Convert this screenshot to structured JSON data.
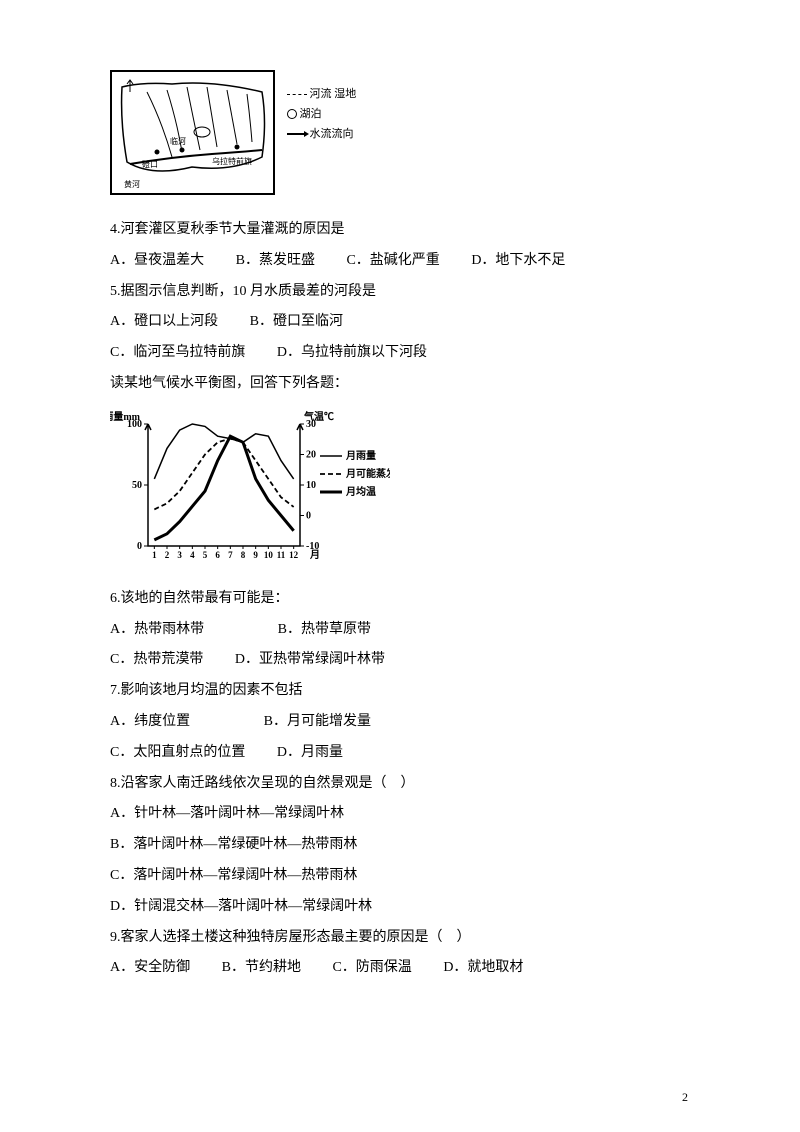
{
  "map": {
    "legend": {
      "riverJiZhi": "河流 湿地",
      "hupo": "湖泊",
      "liuxiang": "水流流向"
    },
    "labels": {
      "cizhi": "磴口",
      "linhe": "临河",
      "wulate": "乌拉特前旗"
    }
  },
  "q4": {
    "text": "4.河套灌区夏秋季节大量灌溉的原因是",
    "A": "A．昼夜温差大",
    "B": "B．蒸发旺盛",
    "C": "C．盐碱化严重",
    "D": "D．地下水不足"
  },
  "q5": {
    "text": "5.据图示信息判断，10 月水质最差的河段是",
    "A": "A．磴口以上河段",
    "B": "B．磴口至临河",
    "C": "C．临河至乌拉特前旗",
    "D": "D．乌拉特前旗以下河段"
  },
  "intro6": "读某地气候水平衡图，回答下列各题：",
  "chart": {
    "yLeftLabel": "降雨量mm",
    "yRightLabel": "气温℃",
    "yLeftTicks": [
      0,
      50,
      100
    ],
    "yRightTicks": [
      -10,
      0,
      10,
      20,
      30
    ],
    "months": [
      "1",
      "2",
      "3",
      "4",
      "5",
      "6",
      "7",
      "8",
      "9",
      "10",
      "11",
      "12"
    ],
    "xLabel": "月",
    "legend": {
      "rain": "月雨量",
      "evap": "月可能蒸发量",
      "temp": "月均温"
    },
    "rainValues": [
      55,
      80,
      95,
      100,
      98,
      90,
      88,
      85,
      92,
      90,
      70,
      55
    ],
    "evapValues": [
      30,
      35,
      45,
      60,
      75,
      85,
      88,
      85,
      70,
      55,
      40,
      32
    ],
    "tempValues": [
      -8,
      -6,
      -2,
      3,
      8,
      18,
      26,
      24,
      12,
      5,
      0,
      -5
    ],
    "colors": {
      "axis": "#000000",
      "rain": "#000000",
      "evap": "#000000",
      "temp": "#000000",
      "background": "#ffffff"
    },
    "lineWidth": 2,
    "fontSize": 10
  },
  "q6": {
    "text": "6.该地的自然带最有可能是：",
    "A": "A．热带雨林带",
    "B": "B．热带草原带",
    "C": "C．热带荒漠带",
    "D": "D．亚热带常绿阔叶林带"
  },
  "q7": {
    "text": "7.影响该地月均温的因素不包括",
    "A": "A．纬度位置",
    "B": "B．月可能增发量",
    "C": "C．太阳直射点的位置",
    "D": "D．月雨量"
  },
  "q8": {
    "text": "8.沿客家人南迁路线依次呈现的自然景观是（　）",
    "A": "A．针叶林—落叶阔叶林—常绿阔叶林",
    "B": "B．落叶阔叶林—常绿硬叶林—热带雨林",
    "C": "C．落叶阔叶林—常绿阔叶林—热带雨林",
    "D": "D．针阔混交林—落叶阔叶林—常绿阔叶林"
  },
  "q9": {
    "text": "9.客家人选择土楼这种独特房屋形态最主要的原因是（　）",
    "A": "A．安全防御",
    "B": "B．节约耕地",
    "C": "C．防雨保温",
    "D": "D．就地取材"
  },
  "pageNum": "2"
}
